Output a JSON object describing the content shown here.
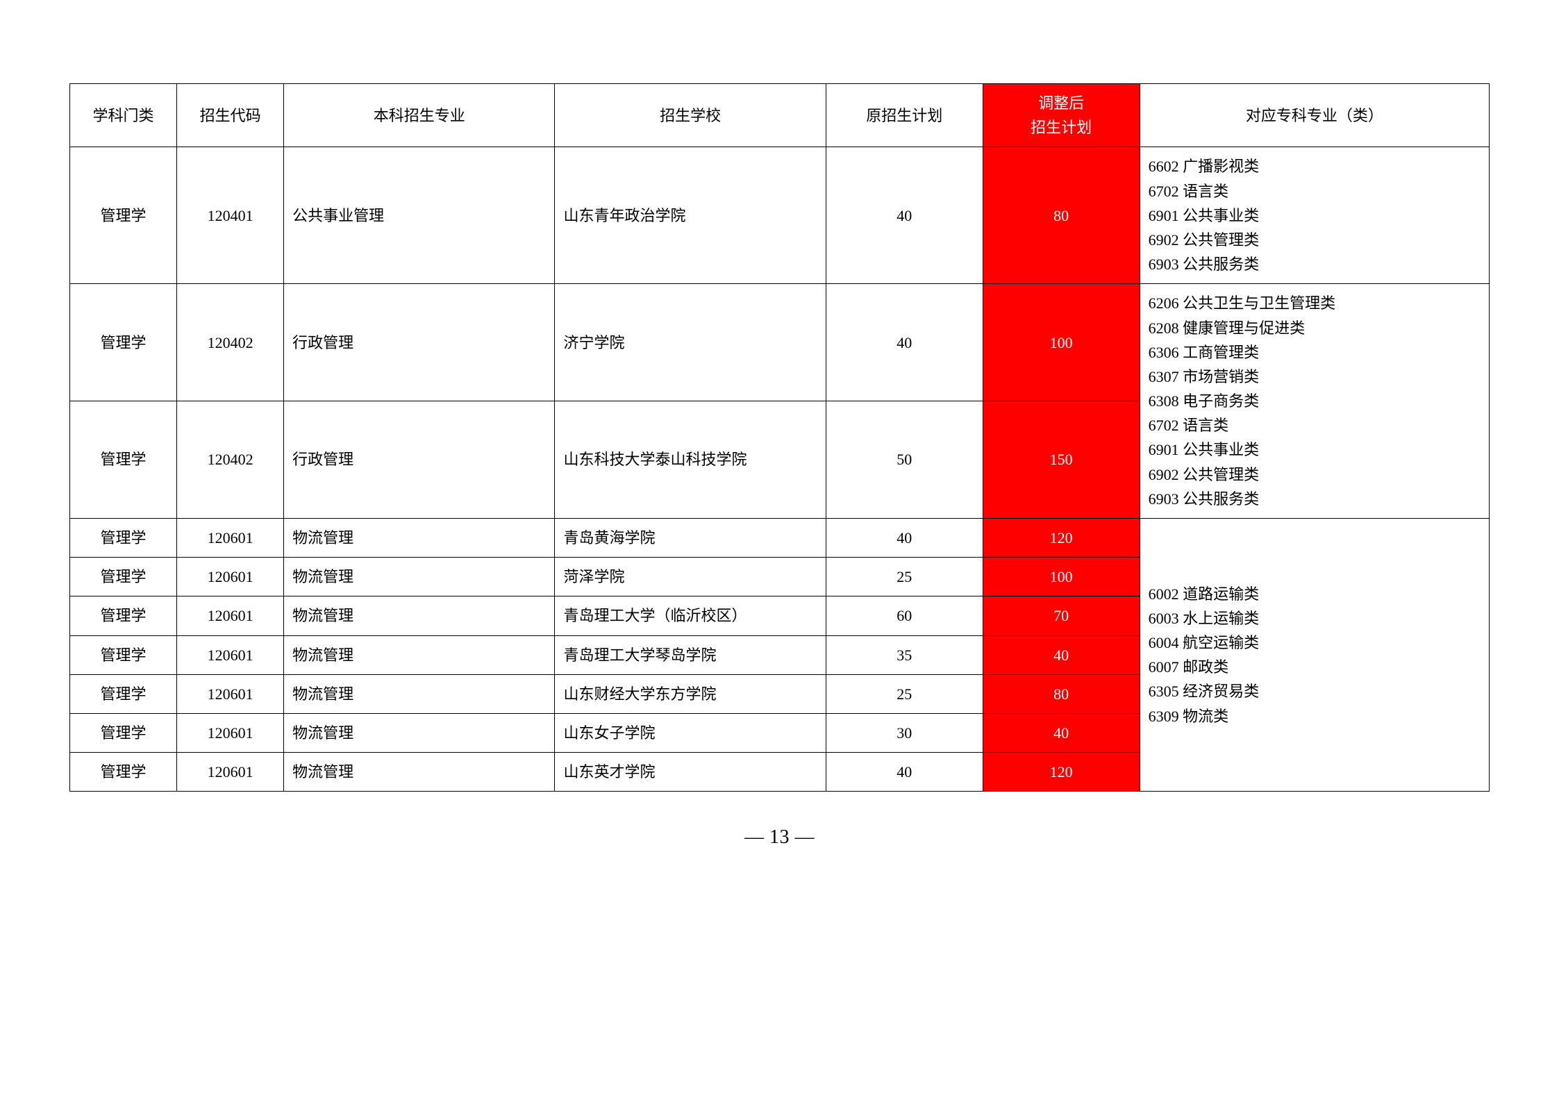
{
  "table": {
    "headers": {
      "col1": "学科门类",
      "col2": "招生代码",
      "col3": "本科招生专业",
      "col4": "招生学校",
      "col5": "原招生计划",
      "col6": "调整后\n招生计划",
      "col7": "对应专科专业（类）"
    },
    "rows": [
      {
        "category": "管理学",
        "code": "120401",
        "major": "公共事业管理",
        "school": "山东青年政治学院",
        "original": "40",
        "adjusted": "80",
        "corresponding": "6602 广播影视类\n6702 语言类\n6901 公共事业类\n6902 公共管理类\n6903 公共服务类",
        "rowspan_corresponding": 1
      },
      {
        "category": "管理学",
        "code": "120402",
        "major": "行政管理",
        "school": "济宁学院",
        "original": "40",
        "adjusted": "100",
        "corresponding": "6206 公共卫生与卫生管理类\n6208 健康管理与促进类\n6306 工商管理类\n6307 市场营销类\n6308 电子商务类\n6702 语言类\n6901 公共事业类\n6902 公共管理类\n6903 公共服务类",
        "rowspan_corresponding": 2
      },
      {
        "category": "管理学",
        "code": "120402",
        "major": "行政管理",
        "school": "山东科技大学泰山科技学院",
        "original": "50",
        "adjusted": "150"
      },
      {
        "category": "管理学",
        "code": "120601",
        "major": "物流管理",
        "school": "青岛黄海学院",
        "original": "40",
        "adjusted": "120",
        "corresponding": "6002 道路运输类\n6003 水上运输类\n6004 航空运输类\n6007 邮政类\n6305 经济贸易类\n6309 物流类",
        "rowspan_corresponding": 7
      },
      {
        "category": "管理学",
        "code": "120601",
        "major": "物流管理",
        "school": "菏泽学院",
        "original": "25",
        "adjusted": "100"
      },
      {
        "category": "管理学",
        "code": "120601",
        "major": "物流管理",
        "school": "青岛理工大学（临沂校区）",
        "original": "60",
        "adjusted": "70"
      },
      {
        "category": "管理学",
        "code": "120601",
        "major": "物流管理",
        "school": "青岛理工大学琴岛学院",
        "original": "35",
        "adjusted": "40"
      },
      {
        "category": "管理学",
        "code": "120601",
        "major": "物流管理",
        "school": "山东财经大学东方学院",
        "original": "25",
        "adjusted": "80"
      },
      {
        "category": "管理学",
        "code": "120601",
        "major": "物流管理",
        "school": "山东女子学院",
        "original": "30",
        "adjusted": "40"
      },
      {
        "category": "管理学",
        "code": "120601",
        "major": "物流管理",
        "school": "山东英才学院",
        "original": "40",
        "adjusted": "120"
      }
    ]
  },
  "page_number": "— 13 —"
}
